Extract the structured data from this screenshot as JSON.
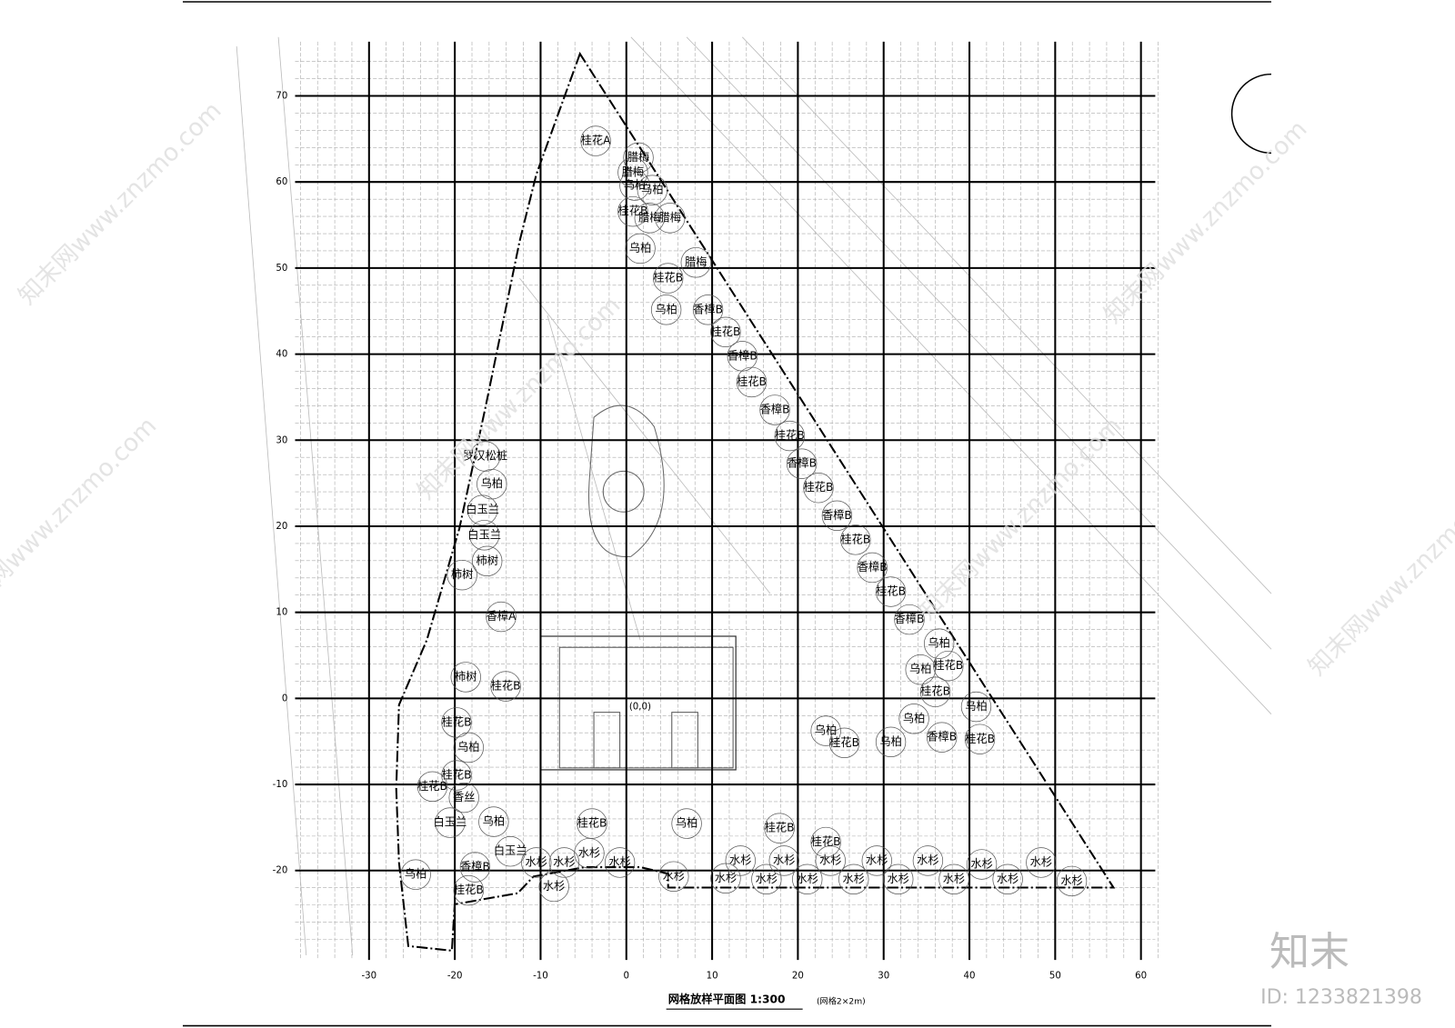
{
  "plan": {
    "title": "网格放样平面图 1:300",
    "note": "(网格2×2m)",
    "origin_label": "(0,0)",
    "xticks": [
      -30,
      -20,
      -10,
      0,
      10,
      20,
      30,
      40,
      50,
      60
    ],
    "yticks": [
      70,
      60,
      50,
      40,
      30,
      20,
      10,
      0,
      -10,
      -20
    ],
    "plants": [
      "桂花A",
      "腊梅",
      "腊梅",
      "乌柏",
      "乌柏",
      "腊梅",
      "桂花B",
      "腊梅",
      "乌柏",
      "腊梅",
      "桂花B",
      "乌柏",
      "香樟B",
      "桂花B",
      "香樟B",
      "桂花B",
      "香樟B",
      "桂花B",
      "香樟B",
      "桂花B",
      "香樟B",
      "桂花B",
      "香樟B",
      "桂花B",
      "香樟B",
      "乌柏",
      "乌柏",
      "桂花B",
      "桂花B",
      "乌柏",
      "乌柏",
      "乌柏",
      "香樟B",
      "桂花B",
      "乌柏",
      "桂花B",
      "罗汉松桩",
      "乌柏",
      "白玉兰",
      "白玉兰",
      "柿树",
      "柿树",
      "香樟A",
      "柿树",
      "桂花B",
      "桂花B",
      "乌柏",
      "桂花B",
      "桂花B",
      "香丝",
      "白玉兰",
      "白玉兰",
      "乌柏",
      "桂花B",
      "乌柏",
      "水杉",
      "水杉",
      "水杉",
      "水杉",
      "水杉",
      "水杉",
      "水杉",
      "水杉",
      "水杉",
      "水杉",
      "水杉",
      "水杉",
      "水杉",
      "水杉",
      "水杉",
      "水杉",
      "水杉",
      "水杉",
      "水杉",
      "水杉",
      "乌柏",
      "香樟B",
      "桂花B",
      "水杉",
      "桂花B",
      "桂花B"
    ],
    "watermarks": [
      "知末网www.znzmo.com",
      "知末网www.znzmo.com",
      "知末网www.znzmo.com",
      "知末网www.znzmo.com",
      "知末网www.znzmo.com",
      "知末网www.znzmo.com"
    ]
  },
  "brand": {
    "logo": "知末",
    "id": "ID: 1233821398"
  }
}
